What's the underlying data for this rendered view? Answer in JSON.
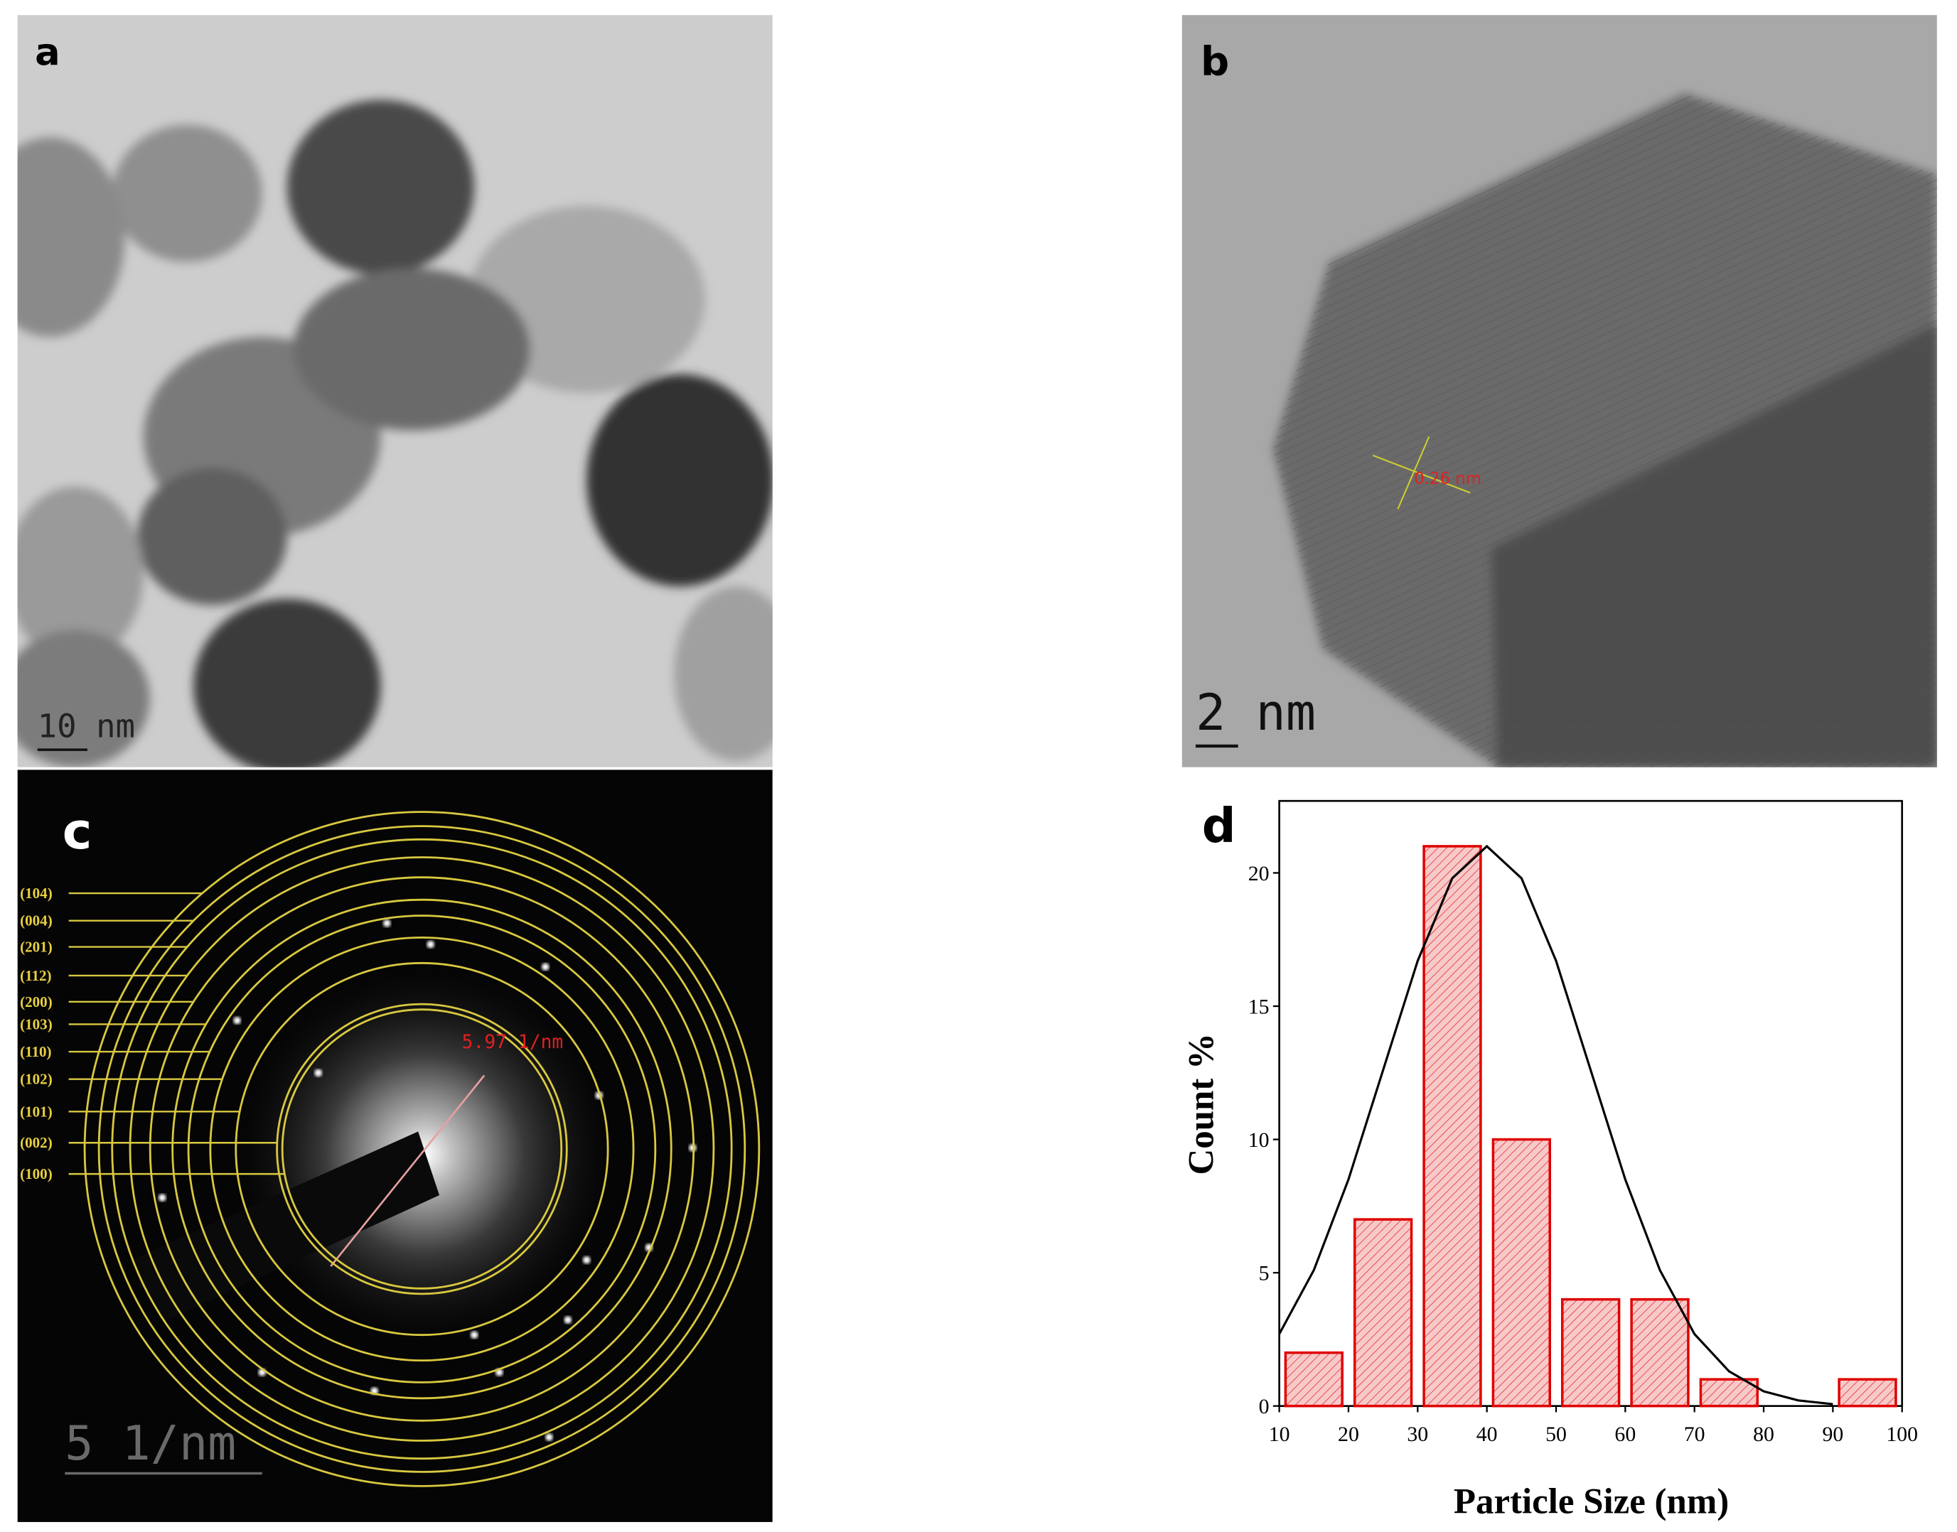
{
  "panels": {
    "a": {
      "label": "a",
      "scale_bar": "10 nm"
    },
    "b": {
      "label": "b",
      "scale_bar": "2 nm",
      "measurement": "0.26 nm"
    },
    "c": {
      "label": "c",
      "scale_bar": "5 1/nm",
      "measurement": "5.97 1/nm",
      "indices": [
        "(104)",
        "(004)",
        "(201)",
        "(112)",
        "(200)",
        "(103)",
        "(110)",
        "(102)",
        "(101)",
        "(002)",
        "(100)"
      ]
    }
  },
  "chart_data": {
    "type": "histogram",
    "panel_label": "d",
    "xlabel": "Particle Size (nm)",
    "ylabel": "Count %",
    "bins": [
      10,
      20,
      30,
      40,
      50,
      60,
      70,
      80,
      90,
      100
    ],
    "values": [
      2,
      7,
      21,
      10,
      4,
      4,
      1,
      0,
      1
    ],
    "color": "#e00000",
    "fill": "#f7c9c9",
    "xlim": [
      10,
      100
    ],
    "ylim": [
      0,
      22.7
    ],
    "xticks": [
      10,
      20,
      30,
      40,
      50,
      60,
      70,
      80,
      90,
      100
    ],
    "yticks": [
      0,
      5,
      10,
      15,
      20
    ],
    "fit": {
      "x": [
        10,
        15,
        20,
        25,
        30,
        35,
        40,
        45,
        50,
        55,
        60,
        65,
        70,
        75,
        80,
        85,
        90
      ],
      "values": [
        2.7,
        5.1,
        8.5,
        12.6,
        16.7,
        19.8,
        21,
        19.8,
        16.7,
        12.6,
        8.5,
        5.1,
        2.7,
        1.3,
        0.55,
        0.21,
        0.07
      ],
      "color": "#000000"
    }
  }
}
